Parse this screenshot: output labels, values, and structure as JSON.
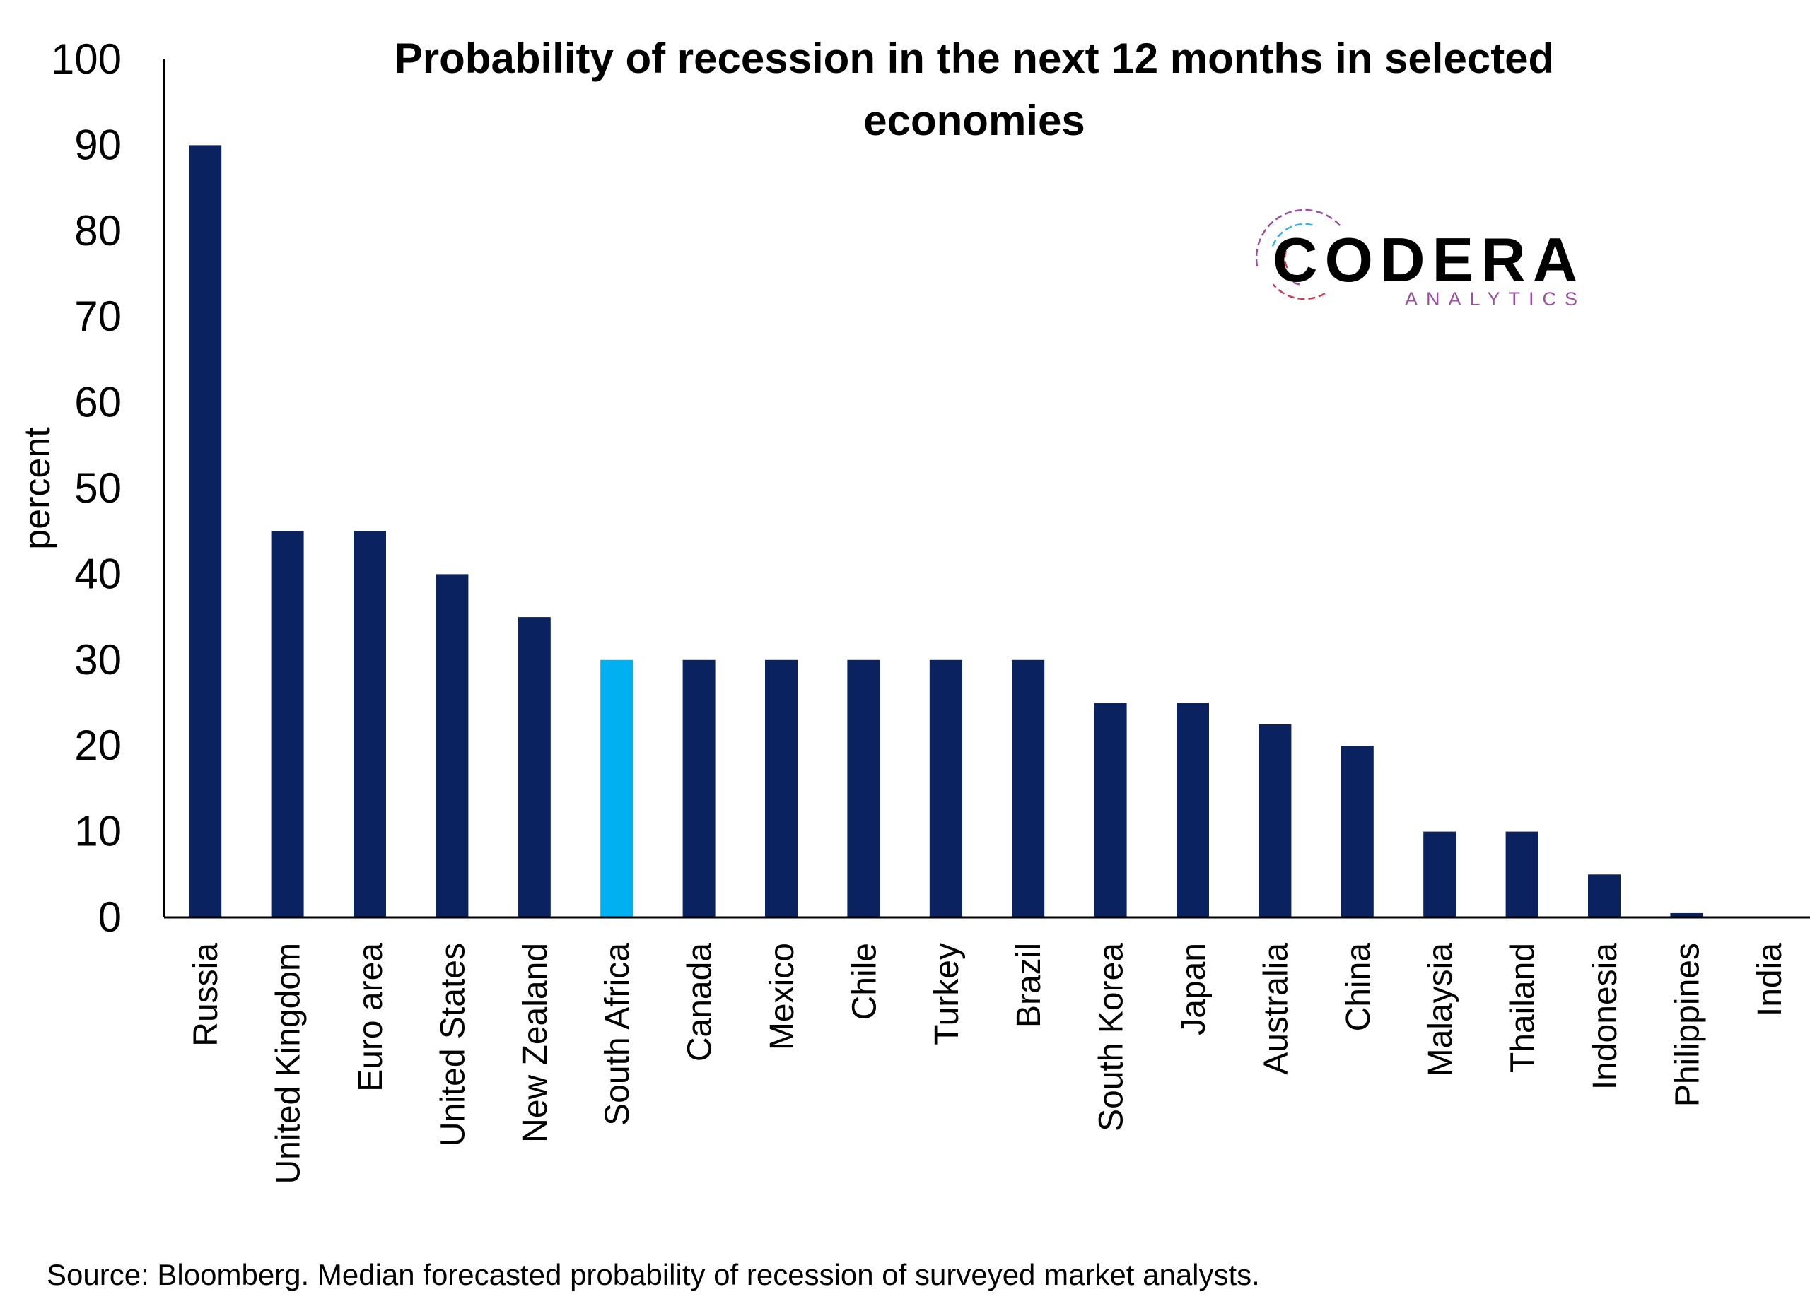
{
  "chart_data": {
    "type": "bar",
    "title_lines": [
      "Probability of recession in the next 12 months in selected",
      "economies"
    ],
    "ylabel": "percent",
    "ylim": [
      0,
      100
    ],
    "yticks": [
      0,
      10,
      20,
      30,
      40,
      50,
      60,
      70,
      80,
      90,
      100
    ],
    "categories": [
      "Russia",
      "United Kingdom",
      "Euro area",
      "United States",
      "New Zealand",
      "South Africa",
      "Canada",
      "Mexico",
      "Chile",
      "Turkey",
      "Brazil",
      "South Korea",
      "Japan",
      "Australia",
      "China",
      "Malaysia",
      "Thailand",
      "Indonesia",
      "Philippines",
      "India"
    ],
    "values": [
      90,
      45,
      45,
      40,
      35,
      30,
      30,
      30,
      30,
      30,
      30,
      25,
      25,
      22.5,
      20,
      10,
      10,
      5,
      0.5,
      0
    ],
    "bar_color": "#0b2260",
    "highlight_color": "#00b0f0",
    "highlight_category": "South Africa",
    "grid": false,
    "legend": "none"
  },
  "logo": {
    "name": "CODERA",
    "sub": "ANALYTICS",
    "colors": [
      "#d23a5a",
      "#9b4fa0",
      "#3ab0e0"
    ]
  },
  "source": "Source: Bloomberg. Median forecasted probability of recession of surveyed market analysts."
}
